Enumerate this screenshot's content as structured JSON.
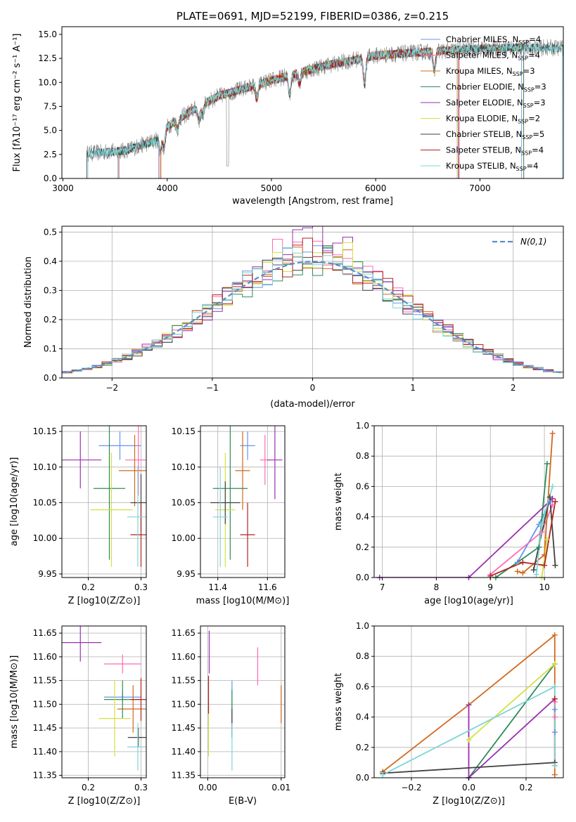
{
  "colors": [
    "#6495ED",
    "#FF69B4",
    "#D2691E",
    "#2E8B57",
    "#9B30B0",
    "#D4E040",
    "#404040",
    "#B22222",
    "#7FD4D8"
  ],
  "panel1": {
    "title": "PLATE=0691, MJD=52199, FIBERID=0386, z=0.215",
    "xlabel": "wavelength [Angstrom, rest frame]",
    "ylabel": "Flux [fλ10⁻¹⁷ erg cm⁻² s⁻¹ A⁻¹]",
    "xlim": [
      2990,
      7800
    ],
    "ylim": [
      0,
      15.8
    ],
    "xticks": [
      "3000",
      "4000",
      "5000",
      "6000",
      "7000"
    ],
    "yticks": [
      "0.0",
      "2.5",
      "5.0",
      "7.5",
      "10.0",
      "12.5",
      "15.0"
    ],
    "legend": [
      {
        "lib": "Chabrier MILES",
        "n": "4"
      },
      {
        "lib": "Salpeter MILES",
        "n": "4"
      },
      {
        "lib": "Kroupa MILES",
        "n": "3"
      },
      {
        "lib": "Chabrier ELODIE",
        "n": "3"
      },
      {
        "lib": "Salpeter ELODIE",
        "n": "3"
      },
      {
        "lib": "Kroupa ELODIE",
        "n": "2"
      },
      {
        "lib": "Chabrier STELIB",
        "n": "5"
      },
      {
        "lib": "Salpeter STELIB",
        "n": "4"
      },
      {
        "lib": "Kroupa STELIB",
        "n": "4"
      }
    ],
    "nssp_prefix": "N",
    "nssp_sub": "SSP",
    "data_color": "#808080",
    "chart_data": {
      "type": "line",
      "ranges": [
        [
          3230,
          7800
        ],
        [
          3530,
          7400
        ],
        [
          3540,
          7420
        ],
        [
          3530,
          7420
        ],
        [
          3530,
          7420
        ],
        [
          3920,
          6790
        ],
        [
          3930,
          6780
        ],
        [
          3230,
          7800
        ],
        [
          3940,
          6800
        ],
        [
          3240,
          7790
        ]
      ],
      "continuum": {
        "x": [
          3230,
          3600,
          3900,
          4000,
          4300,
          4500,
          5000,
          5500,
          6000,
          6500,
          7000,
          7400
        ],
        "y": [
          2.6,
          2.9,
          4.0,
          5.4,
          7.5,
          8.6,
          10.2,
          11.7,
          12.8,
          13.2,
          13.5,
          13.6
        ]
      }
    }
  },
  "panel2": {
    "xlabel": "(data-model)/error",
    "ylabel": "Normed distribution",
    "xlim": [
      -2.5,
      2.5
    ],
    "ylim": [
      0,
      0.52
    ],
    "xticks": [
      "−2",
      "−1",
      "0",
      "1",
      "2"
    ],
    "yticks": [
      "0.0",
      "0.1",
      "0.2",
      "0.3",
      "0.4",
      "0.5"
    ],
    "legend_label": "N(0,1)",
    "gauss_color": "#5B8BD0",
    "chart_data": {
      "type": "histogram",
      "bin_width": 0.1,
      "model": "normal(0,1)",
      "peak": 0.399,
      "series_peaks": [
        0.42,
        0.46,
        0.44,
        0.41,
        0.49,
        0.44,
        0.44,
        0.45,
        0.42
      ]
    }
  },
  "panel3": {
    "xlabel": "Z [log10(Z/Z⊙)]",
    "ylabel": "age  [log10(age/yr)]",
    "xlim": [
      0.15,
      0.31
    ],
    "ylim": [
      9.945,
      10.158
    ],
    "xticks": [
      "0.2",
      "0.3"
    ],
    "yticks": [
      "9.95",
      "10.00",
      "10.05",
      "10.10",
      "10.15"
    ],
    "chart_data": {
      "type": "errorbar",
      "points": [
        {
          "x": 0.26,
          "y": 10.13,
          "xe": 0.04,
          "ye": 0.02
        },
        {
          "x": 0.295,
          "y": 10.11,
          "xe": 0.025,
          "ye": 0.05
        },
        {
          "x": 0.288,
          "y": 10.095,
          "xe": 0.03,
          "ye": 0.05
        },
        {
          "x": 0.24,
          "y": 10.07,
          "xe": 0.03,
          "ye": 0.1
        },
        {
          "x": 0.185,
          "y": 10.11,
          "xe": 0.04,
          "ye": 0.04
        },
        {
          "x": 0.244,
          "y": 10.04,
          "xe": 0.04,
          "ye": 0.08
        },
        {
          "x": 0.3,
          "y": 10.05,
          "xe": 0.02,
          "ye": 0.04
        },
        {
          "x": 0.3,
          "y": 10.005,
          "xe": 0.02,
          "ye": 0.045
        },
        {
          "x": 0.294,
          "y": 10.03,
          "xe": 0.02,
          "ye": 0.07
        }
      ]
    }
  },
  "panel4": {
    "xlabel": "mass [log10(M/M⊙)]",
    "xlim": [
      11.33,
      11.67
    ],
    "ylim": [
      9.945,
      10.158
    ],
    "xticks": [
      "11.4",
      "11.6"
    ],
    "yticks": [
      "9.95",
      "10.00",
      "10.05",
      "10.10",
      "10.15"
    ],
    "chart_data": {
      "type": "errorbar",
      "points": [
        {
          "x": 11.52,
          "y": 10.13,
          "xe": 0.03,
          "ye": 0.02
        },
        {
          "x": 11.59,
          "y": 10.11,
          "xe": 0.02,
          "ye": 0.035
        },
        {
          "x": 11.5,
          "y": 10.095,
          "xe": 0.03,
          "ye": 0.055
        },
        {
          "x": 11.45,
          "y": 10.07,
          "xe": 0.07,
          "ye": 0.1
        },
        {
          "x": 11.63,
          "y": 10.11,
          "xe": 0.03,
          "ye": 0.055
        },
        {
          "x": 11.43,
          "y": 10.04,
          "xe": 0.04,
          "ye": 0.08
        },
        {
          "x": 11.43,
          "y": 10.05,
          "xe": 0.06,
          "ye": 0.03
        },
        {
          "x": 11.52,
          "y": 10.005,
          "xe": 0.03,
          "ye": 0.045
        },
        {
          "x": 11.41,
          "y": 10.03,
          "xe": 0.03,
          "ye": 0.07
        }
      ]
    }
  },
  "panel5": {
    "xlabel": "age  [log10(age/yr)]",
    "ylabel": "mass weight",
    "xlim": [
      6.85,
      10.35
    ],
    "ylim": [
      0,
      1
    ],
    "xticks": [
      "7",
      "8",
      "9",
      "10"
    ],
    "yticks": [
      "0.0",
      "0.2",
      "0.4",
      "0.6",
      "0.8",
      "1.0"
    ],
    "chart_data": {
      "type": "line",
      "series": [
        {
          "x": [
            9.5,
            9.9,
            10.1
          ],
          "y": [
            0.1,
            0.35,
            0.5
          ]
        },
        {
          "x": [
            9.0,
            9.95,
            10.15
          ],
          "y": [
            0.02,
            0.3,
            0.48
          ]
        },
        {
          "x": [
            9.5,
            9.6,
            10.0,
            10.15
          ],
          "y": [
            0.04,
            0.03,
            0.15,
            0.95
          ]
        },
        {
          "x": [
            9.1,
            9.9,
            10.05
          ],
          "y": [
            0.0,
            0.2,
            0.75
          ]
        },
        {
          "x": [
            6.95,
            8.6,
            10.15
          ],
          "y": [
            0.0,
            0.0,
            0.52
          ]
        },
        {
          "x": [
            9.95,
            10.05
          ],
          "y": [
            0.0,
            0.25
          ]
        },
        {
          "x": [
            9.8,
            10.1,
            10.2
          ],
          "y": [
            0.05,
            0.53,
            0.08
          ]
        },
        {
          "x": [
            9.0,
            9.6,
            10.0,
            10.2
          ],
          "y": [
            0.01,
            0.1,
            0.08,
            0.5
          ]
        },
        {
          "x": [
            9.85,
            9.95,
            10.15
          ],
          "y": [
            0.02,
            0.35,
            0.6
          ]
        }
      ]
    }
  },
  "panel6": {
    "xlabel": "Z [log10(Z/Z⊙)]",
    "ylabel": "mass [log10(M/M⊙)]",
    "xlim": [
      0.15,
      0.31
    ],
    "ylim": [
      11.345,
      11.665
    ],
    "xticks": [
      "0.2",
      "0.3"
    ],
    "yticks": [
      "11.35",
      "11.40",
      "11.45",
      "11.50",
      "11.55",
      "11.60",
      "11.65"
    ],
    "chart_data": {
      "type": "errorbar",
      "points": [
        {
          "x": 0.265,
          "y": 11.515,
          "xe": 0.035,
          "ye": 0.01
        },
        {
          "x": 0.265,
          "y": 11.585,
          "xe": 0.035,
          "ye": 0.02
        },
        {
          "x": 0.285,
          "y": 11.49,
          "xe": 0.03,
          "ye": 0.05
        },
        {
          "x": 0.265,
          "y": 11.51,
          "xe": 0.035,
          "ye": 0.04
        },
        {
          "x": 0.185,
          "y": 11.63,
          "xe": 0.04,
          "ye": 0.04
        },
        {
          "x": 0.25,
          "y": 11.47,
          "xe": 0.03,
          "ye": 0.08
        },
        {
          "x": 0.295,
          "y": 11.43,
          "xe": 0.02,
          "ye": 0.02
        },
        {
          "x": 0.3,
          "y": 11.51,
          "xe": 0.02,
          "ye": 0.045
        },
        {
          "x": 0.294,
          "y": 11.41,
          "xe": 0.02,
          "ye": 0.05
        }
      ]
    }
  },
  "panel7": {
    "xlabel": "E(B-V)",
    "xlim": [
      -0.001,
      0.0105
    ],
    "ylim": [
      11.345,
      11.665
    ],
    "xticks": [
      "0.00",
      "0.01"
    ],
    "yticks": [
      "11.35",
      "11.40",
      "11.45",
      "11.50",
      "11.55",
      "11.60",
      "11.65"
    ],
    "chart_data": {
      "type": "errorbar",
      "points": [
        {
          "x": 0.0033,
          "y": 11.49,
          "xe": 0,
          "ye": 0.06
        },
        {
          "x": 0.0068,
          "y": 11.58,
          "xe": 0,
          "ye": 0.04
        },
        {
          "x": 0.01,
          "y": 11.5,
          "xe": 0,
          "ye": 0.04
        },
        {
          "x": 0.0033,
          "y": 11.48,
          "xe": 0,
          "ye": 0.05
        },
        {
          "x": 0.0002,
          "y": 11.61,
          "xe": 0,
          "ye": 0.045
        },
        {
          "x": 0.0001,
          "y": 11.45,
          "xe": 0,
          "ye": 0.06
        },
        {
          "x": 0.0033,
          "y": 11.46,
          "xe": 0,
          "ye": 0.03
        },
        {
          "x": 0.0001,
          "y": 11.52,
          "xe": 0,
          "ye": 0.04
        },
        {
          "x": 0.0033,
          "y": 11.41,
          "xe": 0,
          "ye": 0.05
        }
      ]
    }
  },
  "panel8": {
    "xlabel": "Z [log10(Z/Z⊙)]",
    "ylabel": "mass weight",
    "xlim": [
      -0.33,
      0.33
    ],
    "ylim": [
      0,
      1
    ],
    "xticks": [
      "−0.2",
      "0.0",
      "0.2"
    ],
    "yticks": [
      "0.0",
      "0.2",
      "0.4",
      "0.6",
      "0.8",
      "1.0"
    ],
    "chart_data": {
      "type": "line",
      "series": [
        {
          "x": [
            0.3,
            0.3
          ],
          "y": [
            0.3,
            0.45
          ]
        },
        {
          "x": [
            0.3,
            0.3
          ],
          "y": [
            0.4,
            0.5
          ]
        },
        {
          "x": [
            -0.3,
            0.0,
            0.3,
            0.3
          ],
          "y": [
            0.04,
            0.48,
            0.94,
            0.02
          ]
        },
        {
          "x": [
            0.0,
            0.3
          ],
          "y": [
            0.0,
            0.75
          ]
        },
        {
          "x": [
            0.0,
            0.0,
            0.3
          ],
          "y": [
            0.48,
            0.0,
            0.52
          ]
        },
        {
          "x": [
            0.0,
            0.3
          ],
          "y": [
            0.25,
            0.75
          ]
        },
        {
          "x": [
            -0.3,
            0.3
          ],
          "y": [
            0.03,
            0.1
          ]
        },
        {
          "x": [
            0.3,
            0.3
          ],
          "y": [
            0.08,
            0.52
          ]
        },
        {
          "x": [
            -0.3,
            0.3,
            0.3
          ],
          "y": [
            0.02,
            0.6,
            0.08
          ]
        }
      ]
    }
  }
}
